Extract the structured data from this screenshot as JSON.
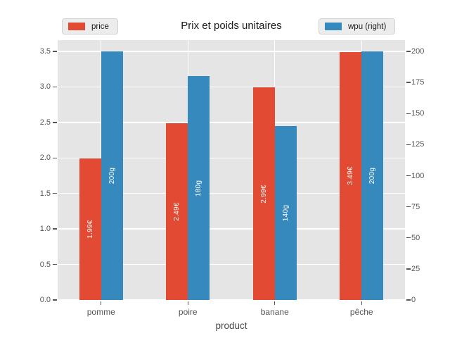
{
  "chart_data": {
    "type": "bar",
    "title": "Prix et poids unitaires",
    "xlabel": "product",
    "categories": [
      "pomme",
      "poire",
      "banane",
      "pêche"
    ],
    "series": [
      {
        "name": "price",
        "axis": "left",
        "color": "#E24A33",
        "values": [
          1.99,
          2.49,
          2.99,
          3.49
        ],
        "bar_labels": [
          "1.99€",
          "2.49€",
          "2.99€",
          "3.49€"
        ]
      },
      {
        "name": "wpu (right)",
        "axis": "right",
        "color": "#3689BD",
        "values": [
          200,
          180,
          140,
          200
        ],
        "bar_labels": [
          "200g",
          "180g",
          "140g",
          "200g"
        ]
      }
    ],
    "left_axis": {
      "min": 0,
      "max": 3.5,
      "ticks": [
        0,
        0.5,
        1,
        1.5,
        2,
        2.5,
        3,
        3.5
      ],
      "tick_labels": [
        "0.0",
        "0.5",
        "1.0",
        "1.5",
        "2.0",
        "2.5",
        "3.0",
        "3.5"
      ]
    },
    "right_axis": {
      "min": 0,
      "max": 200,
      "ticks": [
        0,
        25,
        50,
        75,
        100,
        125,
        150,
        175,
        200
      ],
      "tick_labels": [
        "0",
        "25",
        "50",
        "75",
        "100",
        "125",
        "150",
        "175",
        "200"
      ]
    },
    "grid": true,
    "legend_position": "top",
    "plot_bg": "#E5E5E5",
    "grid_color": "#FFFFFF",
    "tick_label_color": "#555555"
  }
}
